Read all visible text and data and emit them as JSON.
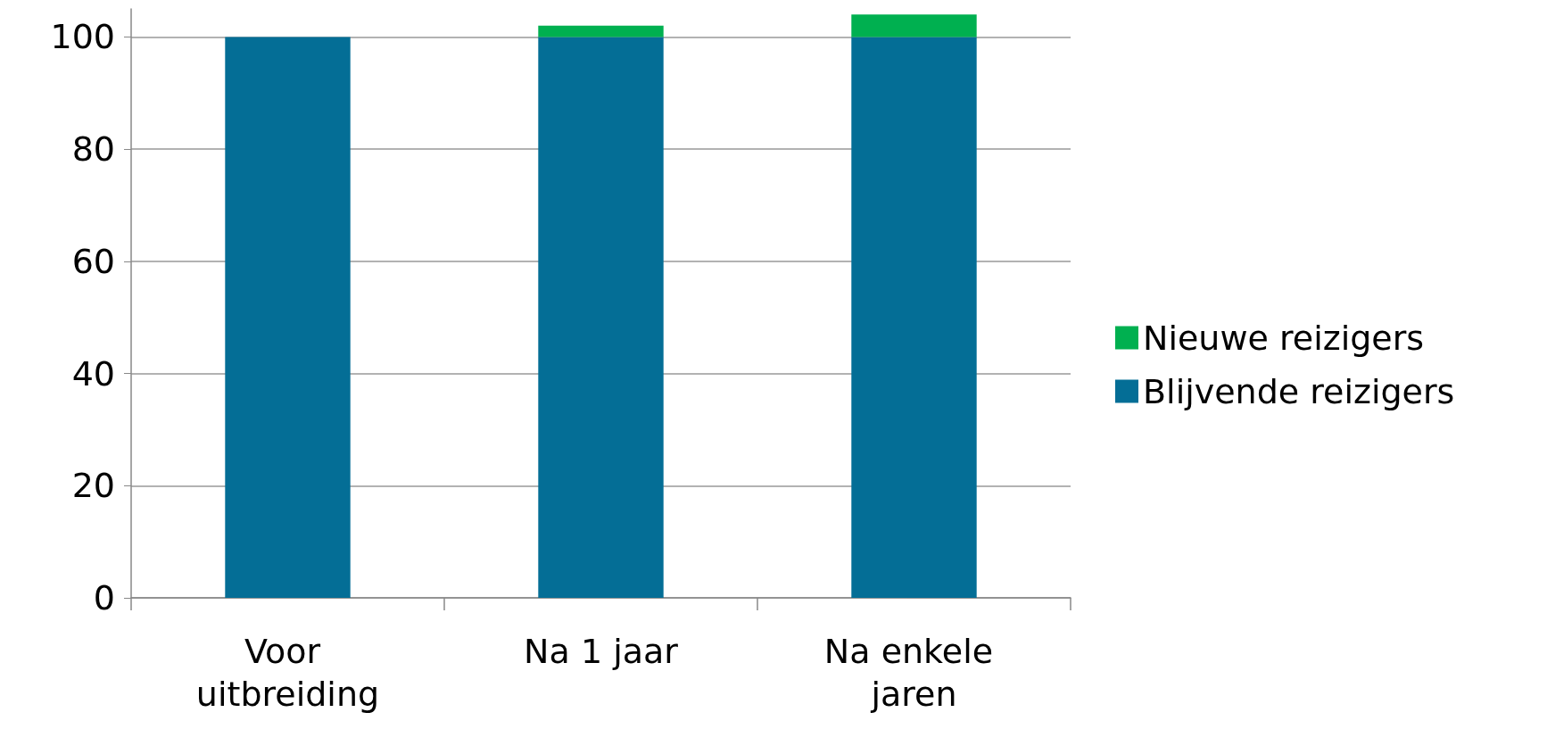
{
  "chart_data": {
    "type": "bar",
    "stacked": true,
    "categories": [
      "Voor uitbreiding",
      "Na 1 jaar",
      "Na enkele jaren"
    ],
    "series": [
      {
        "name": "Blijvende reizigers",
        "color": "#046e96",
        "values": [
          100,
          100,
          100
        ]
      },
      {
        "name": "Nieuwe reizigers",
        "color": "#00b050",
        "values": [
          0,
          2,
          4
        ]
      }
    ],
    "ylim": [
      0,
      105
    ],
    "yticks": [
      0,
      20,
      40,
      60,
      80,
      100
    ],
    "grid": "y",
    "legend": "right"
  }
}
